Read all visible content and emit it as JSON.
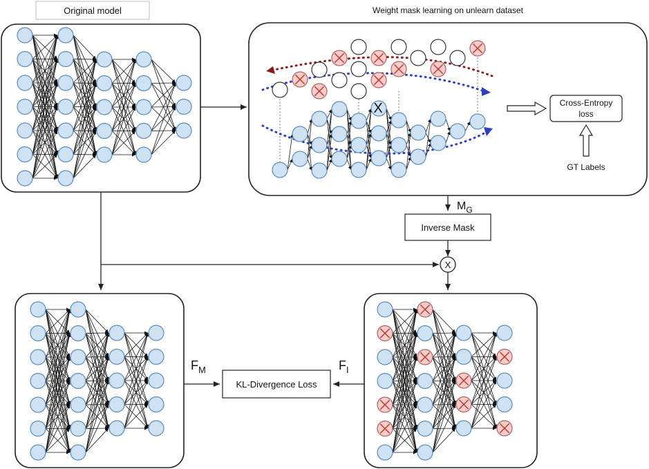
{
  "labels": {
    "original_model": "Original model",
    "weight_mask_title": "Weight mask learning on unlearn dataset",
    "cross_entropy_line1": "Cross-Entropy",
    "cross_entropy_line2": "loss",
    "gt_labels": "GT Labels",
    "multiply_symbol": "X",
    "mask_symbol_main": "M",
    "mask_symbol_sub": "G",
    "inverse_mask": "Inverse Mask",
    "multiply_circle": "X",
    "kl_loss": "KL-Divergence Loss",
    "fm_main": "F",
    "fm_sub": "M",
    "fi_main": "F",
    "fi_sub": "I"
  },
  "colors": {
    "node_fill": "#cfe2f3",
    "node_stroke": "#5b8bbf",
    "masked_node_fill": "#f4cccc",
    "masked_x_color": "#c0392b",
    "red_dotted_curve": "#8b1a1a",
    "blue_dotted_curve": "#2c3fbf"
  }
}
